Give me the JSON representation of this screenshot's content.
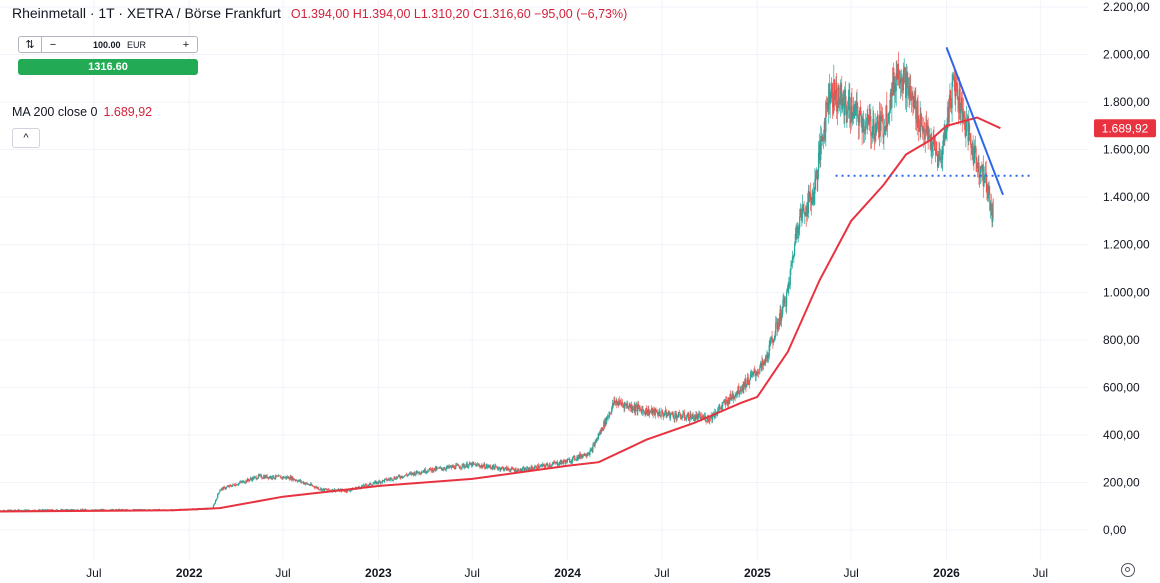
{
  "header": {
    "symbol": "Rheinmetall · 1T · XETRA / Börse Frankfurt",
    "open": "O1.394,00",
    "high": "H1.394,00",
    "low": "L1.310,20",
    "close": "C1.316,60",
    "change": "−95,00 (−6,73%)"
  },
  "order": {
    "quantity": "100.00",
    "currency": "EUR",
    "minus": "−",
    "plus": "+",
    "buy_price": "1316.60"
  },
  "indicator": {
    "label": "MA 200 close 0",
    "value": "1.689,92",
    "collapse_symbol": "^"
  },
  "colors": {
    "up": "#26a69a",
    "down": "#ef5350",
    "ma": "#e8323f",
    "trend": "#2f66e8",
    "support": "#2f66e8",
    "price_label": "#e8323f"
  },
  "chart_data": {
    "type": "candlestick",
    "title": "",
    "y_axis": {
      "ticks": [
        0,
        200,
        400,
        600,
        800,
        1000,
        1200,
        1400,
        1600,
        1800,
        2000,
        2200
      ],
      "tick_labels": [
        "0,00",
        "200,00",
        "400,00",
        "600,00",
        "800,00",
        "1.000,00",
        "1.200,00",
        "1.400,00",
        "1.600,00",
        "1.800,00",
        "2.000,00",
        "2.200,00"
      ],
      "ylim": [
        -120,
        2200
      ]
    },
    "x_axis": {
      "range": [
        "2021-01-01",
        "2026-10-01"
      ],
      "ticks": [
        "2021-07-01",
        "2022-01-01",
        "2022-07-01",
        "2023-01-01",
        "2023-07-01",
        "2024-01-01",
        "2024-07-01",
        "2025-01-01",
        "2025-07-01",
        "2026-01-01",
        "2026-07-01"
      ],
      "tick_labels": [
        "Jul",
        "2022",
        "Jul",
        "2023",
        "Jul",
        "2024",
        "Jul",
        "2025",
        "Jul",
        "2026",
        "Jul"
      ],
      "bold_labels": [
        "2022",
        "2023",
        "2024",
        "2025",
        "2026"
      ]
    },
    "price_path": [
      [
        "2021-01-01",
        82
      ],
      [
        "2021-06-01",
        85
      ],
      [
        "2021-12-01",
        84
      ],
      [
        "2022-02-15",
        90
      ],
      [
        "2022-03-01",
        170
      ],
      [
        "2022-05-15",
        225
      ],
      [
        "2022-07-15",
        220
      ],
      [
        "2022-09-15",
        170
      ],
      [
        "2022-11-01",
        165
      ],
      [
        "2023-01-15",
        210
      ],
      [
        "2023-04-01",
        250
      ],
      [
        "2023-07-01",
        275
      ],
      [
        "2023-10-01",
        250
      ],
      [
        "2024-01-01",
        290
      ],
      [
        "2024-02-15",
        330
      ],
      [
        "2024-04-01",
        540
      ],
      [
        "2024-06-01",
        500
      ],
      [
        "2024-08-01",
        480
      ],
      [
        "2024-10-01",
        470
      ],
      [
        "2024-12-01",
        600
      ],
      [
        "2025-01-15",
        700
      ],
      [
        "2025-03-01",
        1000
      ],
      [
        "2025-03-20",
        1300
      ],
      [
        "2025-04-20",
        1420
      ],
      [
        "2025-05-20",
        1850
      ],
      [
        "2025-06-15",
        1800
      ],
      [
        "2025-08-01",
        1700
      ],
      [
        "2025-09-01",
        1700
      ],
      [
        "2025-10-01",
        1950
      ],
      [
        "2025-11-15",
        1700
      ],
      [
        "2025-12-20",
        1550
      ],
      [
        "2026-01-15",
        1900
      ],
      [
        "2026-02-20",
        1600
      ],
      [
        "2026-03-20",
        1450
      ],
      [
        "2026-04-01",
        1316.6
      ]
    ],
    "ma200": [
      [
        "2021-01-01",
        78
      ],
      [
        "2021-12-01",
        83
      ],
      [
        "2022-03-01",
        92
      ],
      [
        "2022-07-01",
        140
      ],
      [
        "2023-01-01",
        185
      ],
      [
        "2023-07-01",
        215
      ],
      [
        "2024-01-01",
        270
      ],
      [
        "2024-03-01",
        285
      ],
      [
        "2024-06-01",
        380
      ],
      [
        "2024-09-01",
        450
      ],
      [
        "2024-12-01",
        535
      ],
      [
        "2025-01-01",
        560
      ],
      [
        "2025-03-01",
        750
      ],
      [
        "2025-05-01",
        1050
      ],
      [
        "2025-07-01",
        1300
      ],
      [
        "2025-09-01",
        1450
      ],
      [
        "2025-10-15",
        1580
      ],
      [
        "2025-12-01",
        1640
      ],
      [
        "2026-01-01",
        1700
      ],
      [
        "2026-03-01",
        1735
      ],
      [
        "2026-04-15",
        1690
      ]
    ],
    "trendline": [
      [
        "2026-01-01",
        2030
      ],
      [
        "2026-04-20",
        1410
      ]
    ],
    "support_line": [
      [
        "2025-06-01",
        1490
      ],
      [
        "2026-06-15",
        1490
      ]
    ],
    "last_price_label": {
      "value": 1689.92,
      "text": "1.689,92"
    }
  }
}
